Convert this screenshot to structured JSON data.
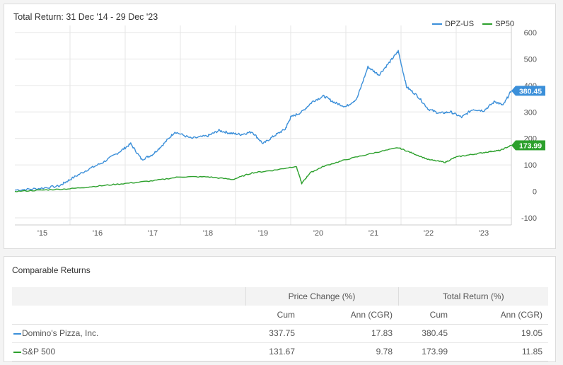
{
  "chart_data": {
    "type": "line",
    "title": "Total Return: 31 Dec '14 - 29 Dec '23",
    "x_ticks": [
      "'15",
      "'16",
      "'17",
      "'18",
      "'19",
      "'20",
      "'21",
      "'22",
      "'23"
    ],
    "y_ticks": [
      "600",
      "500",
      "400",
      "300",
      "200",
      "100",
      "0",
      "-100"
    ],
    "ylim": [
      -100,
      600
    ],
    "xlim": [
      2015.0,
      2024.0
    ],
    "grid": true,
    "legend_position": "top-right",
    "series": [
      {
        "name": "DPZ-US",
        "color": "#3b8fd9",
        "end_label": "380.45",
        "x": [
          2015.0,
          2015.4,
          2015.8,
          2016.0,
          2016.3,
          2016.6,
          2016.9,
          2017.1,
          2017.3,
          2017.5,
          2017.7,
          2017.9,
          2018.2,
          2018.5,
          2018.7,
          2018.9,
          2019.1,
          2019.3,
          2019.5,
          2019.7,
          2019.9,
          2020.0,
          2020.2,
          2020.4,
          2020.6,
          2020.8,
          2021.0,
          2021.2,
          2021.4,
          2021.6,
          2021.8,
          2021.95,
          2022.1,
          2022.3,
          2022.5,
          2022.7,
          2022.9,
          2023.1,
          2023.3,
          2023.5,
          2023.7,
          2023.85,
          2024.0
        ],
        "values": [
          5,
          10,
          20,
          45,
          80,
          110,
          150,
          180,
          120,
          140,
          180,
          225,
          200,
          210,
          230,
          220,
          215,
          225,
          180,
          210,
          235,
          280,
          300,
          340,
          360,
          335,
          320,
          350,
          470,
          440,
          490,
          530,
          395,
          360,
          310,
          295,
          300,
          280,
          310,
          305,
          340,
          325,
          380
        ]
      },
      {
        "name": "SP50",
        "color": "#2ca02c",
        "end_label": "173.99",
        "x": [
          2015.0,
          2015.5,
          2016.0,
          2016.5,
          2017.0,
          2017.5,
          2018.0,
          2018.5,
          2018.95,
          2019.3,
          2019.7,
          2020.1,
          2020.2,
          2020.35,
          2020.6,
          2021.0,
          2021.5,
          2021.95,
          2022.2,
          2022.5,
          2022.8,
          2023.0,
          2023.3,
          2023.6,
          2023.8,
          2024.0
        ],
        "values": [
          0,
          5,
          10,
          20,
          30,
          40,
          55,
          55,
          45,
          70,
          80,
          95,
          30,
          70,
          95,
          120,
          145,
          165,
          145,
          120,
          110,
          130,
          140,
          150,
          155,
          174
        ]
      }
    ]
  },
  "table": {
    "title": "Comparable Returns",
    "group_headers": [
      "Price Change (%)",
      "Total Return (%)"
    ],
    "sub_headers": [
      "Cum",
      "Ann (CGR)",
      "Cum",
      "Ann (CGR)"
    ],
    "rows": [
      {
        "name": "Domino's Pizza, Inc.",
        "color": "#3b8fd9",
        "values": [
          "337.75",
          "17.83",
          "380.45",
          "19.05"
        ]
      },
      {
        "name": "S&P 500",
        "color": "#2ca02c",
        "values": [
          "131.67",
          "9.78",
          "173.99",
          "11.85"
        ]
      }
    ]
  }
}
